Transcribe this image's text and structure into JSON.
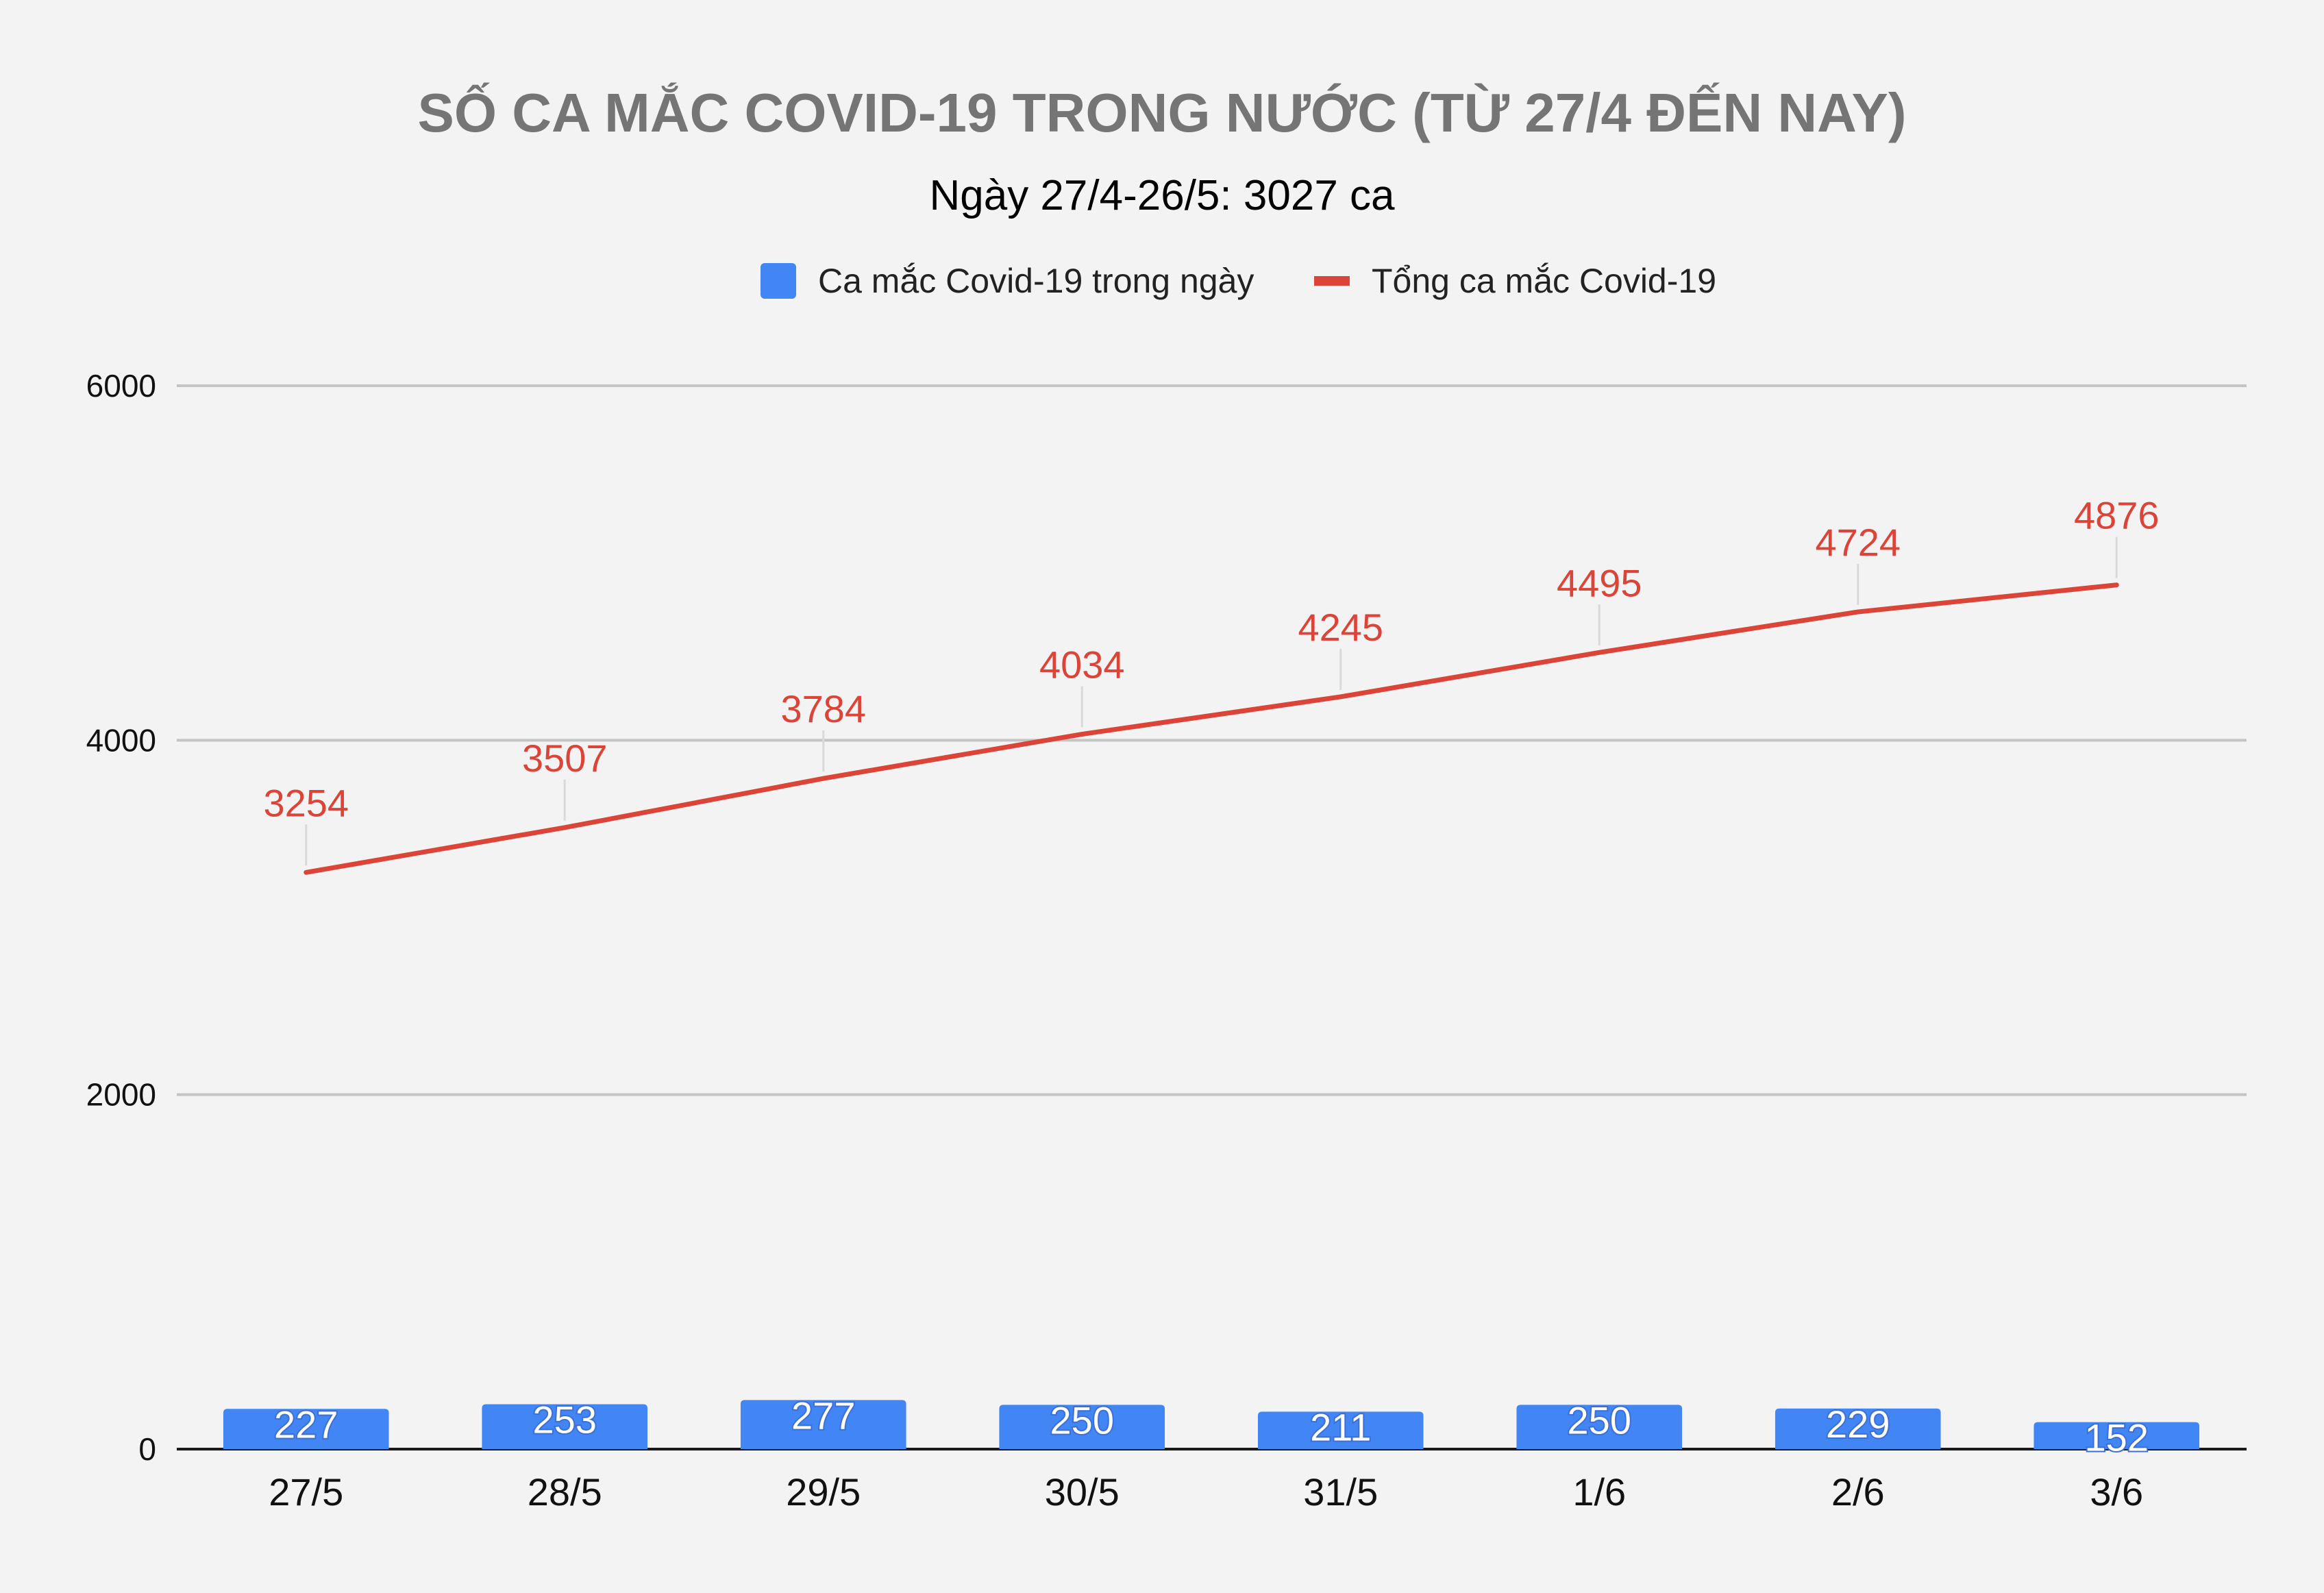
{
  "chart_data": {
    "type": "bar",
    "title": "SỐ CA MẮC COVID-19 TRONG NƯỚC (TỪ 27/4 ĐẾN NAY)",
    "subtitle": "Ngày 27/4-26/5: 3027 ca",
    "categories": [
      "27/5",
      "28/5",
      "29/5",
      "30/5",
      "31/5",
      "1/6",
      "2/6",
      "3/6"
    ],
    "series": [
      {
        "name": "Ca mắc Covid-19 trong ngày",
        "type": "bar",
        "color": "#4285f4",
        "values": [
          227,
          253,
          277,
          250,
          211,
          250,
          229,
          152
        ]
      },
      {
        "name": "Tổng ca mắc Covid-19",
        "type": "line",
        "color": "#db4437",
        "values": [
          3254,
          3507,
          3784,
          4034,
          4245,
          4495,
          4724,
          4876
        ]
      }
    ],
    "yticks": [
      "0",
      "2000",
      "4000",
      "6000"
    ],
    "ylim": [
      0,
      6000
    ],
    "grid": true,
    "legend_position": "top-center"
  }
}
